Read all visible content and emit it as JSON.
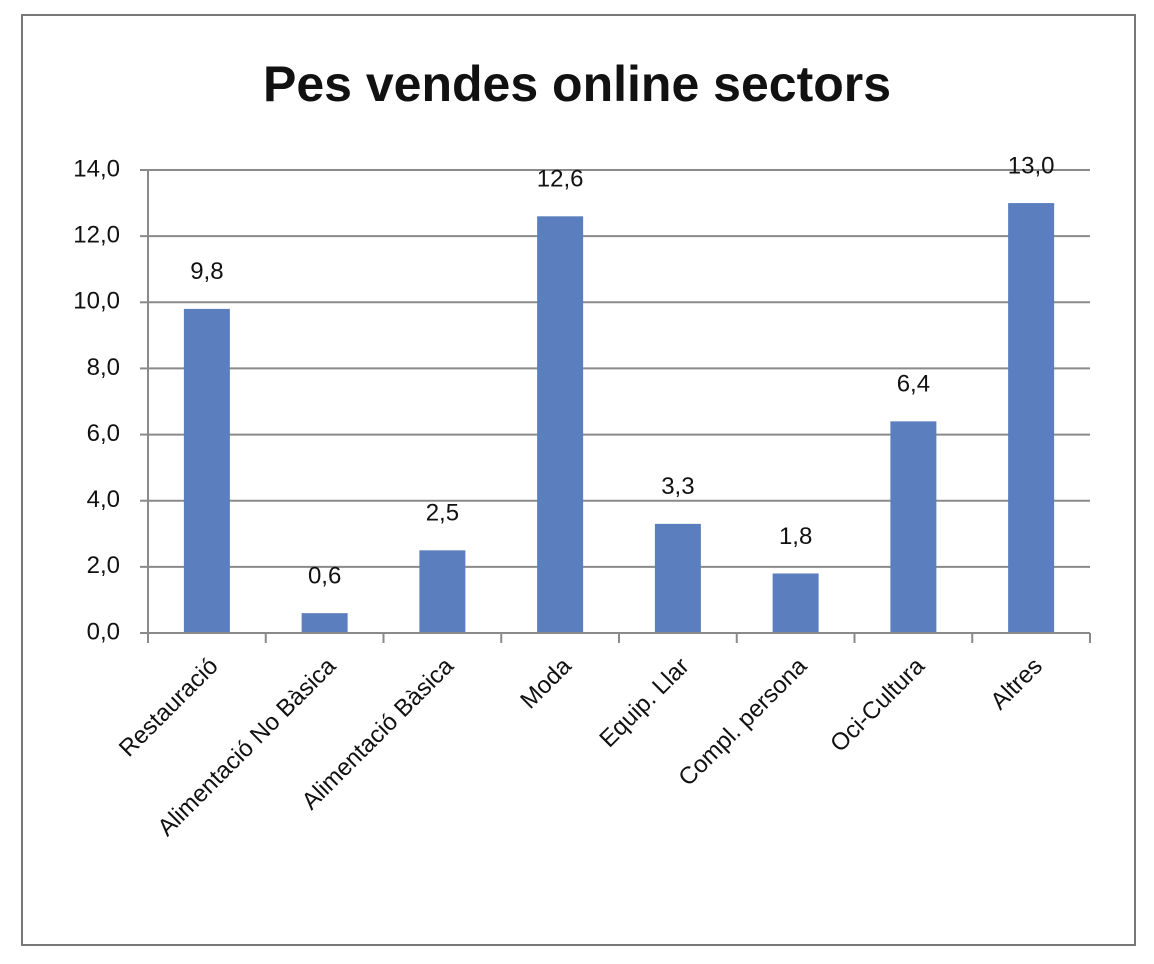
{
  "chart_data": {
    "type": "bar",
    "title": "Pes vendes online sectors",
    "categories": [
      "Restauració",
      "Alimentació No Bàsica",
      "Alimentació Bàsica",
      "Moda",
      "Equip. Llar",
      "Compl. persona",
      "Oci-Cultura",
      "Altres"
    ],
    "values": [
      9.8,
      0.6,
      2.5,
      12.6,
      3.3,
      1.8,
      6.4,
      13.0
    ],
    "value_labels": [
      "9,8",
      "0,6",
      "2,5",
      "12,6",
      "3,3",
      "1,8",
      "6,4",
      "13,0"
    ],
    "color": "#5b7fbe",
    "ylim": [
      0,
      14
    ],
    "yticks": [
      {
        "value": 0,
        "label": "0,0"
      },
      {
        "value": 2,
        "label": "2,0"
      },
      {
        "value": 4,
        "label": "4,0"
      },
      {
        "value": 6,
        "label": "6,0"
      },
      {
        "value": 8,
        "label": "8,0"
      },
      {
        "value": 10,
        "label": "10,0"
      },
      {
        "value": 12,
        "label": "12,0"
      },
      {
        "value": 14,
        "label": "14,0"
      }
    ],
    "grid": true
  }
}
